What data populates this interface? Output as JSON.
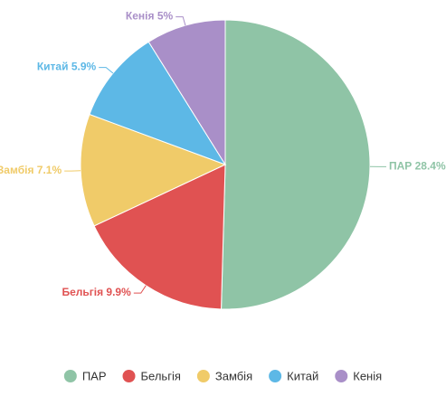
{
  "chart_data": {
    "type": "pie",
    "categories": [
      "ПАР",
      "Бельгія",
      "Замбія",
      "Китай",
      "Кенія"
    ],
    "values": [
      28.4,
      9.9,
      7.1,
      5.9,
      5
    ],
    "value_labels": [
      "28.4%",
      "9.9%",
      "7.1%",
      "5.9%",
      "5%"
    ],
    "colors": [
      "#8fc4a6",
      "#e05252",
      "#f0cb69",
      "#5db8e6",
      "#a98fc8"
    ],
    "legend": "bottom"
  }
}
